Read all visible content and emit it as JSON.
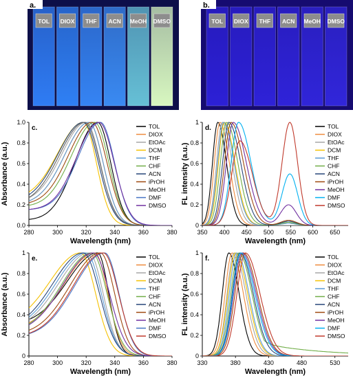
{
  "photos": [
    {
      "panel": "a.",
      "labels": [
        "TOL",
        "DIOX",
        "THF",
        "ACN",
        "MeOH",
        "DMSO"
      ],
      "vial_colors": [
        "#2f7cf4",
        "#2f80f5",
        "#3584f4",
        "#3a8af2",
        "#66c0d6",
        "#d8f7c0"
      ],
      "background": "#0d0f49"
    },
    {
      "panel": "b.",
      "labels": [
        "TOL",
        "DIOX",
        "THF",
        "ACN",
        "MeOH",
        "DMSO"
      ],
      "vial_colors": [
        "#2c20d6",
        "#2d21d7",
        "#2e22d8",
        "#2f23d9",
        "#3025d9",
        "#3126da"
      ],
      "background": "#160b70"
    }
  ],
  "chart_data": [
    {
      "panel": "c.",
      "type": "line",
      "xlabel": "Wavelength (nm)",
      "ylabel": "Absorbance (a.u.)",
      "xlim": [
        280,
        380
      ],
      "ylim": [
        0,
        1.0
      ],
      "xticks": [
        "280",
        "300",
        "320",
        "340",
        "360",
        "380"
      ],
      "yticks": [
        "0.0",
        "0.2",
        "0.4",
        "0.6",
        "0.8",
        "1.0"
      ],
      "legend": "top-right",
      "series": [
        {
          "name": "TOL",
          "color": "#000000",
          "peak": 328,
          "lw": 22,
          "rw": 13,
          "base": 0.05
        },
        {
          "name": "DIOX",
          "color": "#ee8a3c",
          "peak": 322,
          "lw": 24,
          "rw": 14,
          "base": 0.2
        },
        {
          "name": "EtOAc",
          "color": "#a5a5a5",
          "peak": 320,
          "lw": 24,
          "rw": 14,
          "base": 0.22
        },
        {
          "name": "DCM",
          "color": "#f5c100",
          "peak": 318,
          "lw": 25,
          "rw": 13,
          "base": 0.25
        },
        {
          "name": "THF",
          "color": "#5b9bd5",
          "peak": 322,
          "lw": 24,
          "rw": 14,
          "base": 0.2
        },
        {
          "name": "CHF",
          "color": "#70ad47",
          "peak": 326,
          "lw": 23,
          "rw": 14,
          "base": 0.18
        },
        {
          "name": "ACN",
          "color": "#264478",
          "peak": 318,
          "lw": 25,
          "rw": 15,
          "base": 0.22
        },
        {
          "name": "iPrOH",
          "color": "#9e480e",
          "peak": 324,
          "lw": 23,
          "rw": 15,
          "base": 0.2
        },
        {
          "name": "MeOH",
          "color": "#636363",
          "peak": 319,
          "lw": 25,
          "rw": 15,
          "base": 0.2
        },
        {
          "name": "DMF",
          "color": "#4472c4",
          "peak": 330,
          "lw": 22,
          "rw": 14,
          "base": 0.15
        },
        {
          "name": "DMSO",
          "color": "#7030a0",
          "peak": 329,
          "lw": 22,
          "rw": 15,
          "base": 0.15
        }
      ]
    },
    {
      "panel": "d.",
      "type": "line",
      "xlabel": "Wavelength (nm)",
      "ylabel": "FL intensity (a.u.)",
      "xlim": [
        350,
        680
      ],
      "ylim": [
        0,
        1.0
      ],
      "xticks": [
        "350",
        "400",
        "450",
        "500",
        "550",
        "600",
        "650"
      ],
      "yticks": [
        "0",
        "0.2",
        "0.4",
        "0.6",
        "0.8",
        "1"
      ],
      "legend": "top-right",
      "series": [
        {
          "name": "TOL",
          "color": "#000000",
          "peak": 385,
          "lw": 17,
          "rw": 28,
          "hump": 0,
          "hump_pos": 545
        },
        {
          "name": "DIOX",
          "color": "#ee8a3c",
          "peak": 390,
          "lw": 18,
          "rw": 30,
          "hump": 0,
          "hump_pos": 545
        },
        {
          "name": "EtOAc",
          "color": "#a5a5a5",
          "peak": 395,
          "lw": 18,
          "rw": 32,
          "hump": 0,
          "hump_pos": 545
        },
        {
          "name": "DCM",
          "color": "#f5c100",
          "peak": 400,
          "lw": 19,
          "rw": 34,
          "hump": 0.02,
          "hump_pos": 545
        },
        {
          "name": "THF",
          "color": "#5b9bd5",
          "peak": 398,
          "lw": 19,
          "rw": 34,
          "hump": 0.02,
          "hump_pos": 545
        },
        {
          "name": "CHF",
          "color": "#70ad47",
          "peak": 405,
          "lw": 20,
          "rw": 36,
          "hump": 0.03,
          "hump_pos": 545
        },
        {
          "name": "ACN",
          "color": "#264478",
          "peak": 410,
          "lw": 20,
          "rw": 38,
          "hump": 0.04,
          "hump_pos": 545
        },
        {
          "name": "iPrOH",
          "color": "#9e480e",
          "peak": 415,
          "lw": 21,
          "rw": 40,
          "hump": 0.05,
          "hump_pos": 545
        },
        {
          "name": "MeOH",
          "color": "#7030a0",
          "peak": 420,
          "lw": 22,
          "rw": 42,
          "hump": 0.2,
          "hump_pos": 545
        },
        {
          "name": "DMF",
          "color": "#00b0f0",
          "peak": 432,
          "lw": 24,
          "rw": 40,
          "hump": 0.5,
          "hump_pos": 548
        },
        {
          "name": "DMSO",
          "color": "#c0392b",
          "peak": 435,
          "lw": 26,
          "rw": 40,
          "peak_val": 0.82,
          "hump": 1.0,
          "hump_pos": 548
        }
      ]
    },
    {
      "panel": "e.",
      "type": "line",
      "xlabel": "Wavelength (nm)",
      "ylabel": "Absorbance (a.u.)",
      "xlim": [
        280,
        380
      ],
      "ylim": [
        0,
        1.0
      ],
      "xticks": [
        "280",
        "300",
        "320",
        "340",
        "360",
        "380"
      ],
      "yticks": [
        "0",
        "0.2",
        "0.4",
        "0.6",
        "0.8",
        "1"
      ],
      "legend": "top-right",
      "series": [
        {
          "name": "TOL",
          "color": "#000000",
          "peak": 328,
          "lw": 30,
          "rw": 11,
          "base": 0.3
        },
        {
          "name": "DIOX",
          "color": "#ee8a3c",
          "peak": 326,
          "lw": 30,
          "rw": 13,
          "base": 0.25
        },
        {
          "name": "EtOAc",
          "color": "#a5a5a5",
          "peak": 322,
          "lw": 30,
          "rw": 14,
          "base": 0.25
        },
        {
          "name": "DCM",
          "color": "#f5c100",
          "peak": 316,
          "lw": 30,
          "rw": 15,
          "base": 0.3
        },
        {
          "name": "THF",
          "color": "#5b9bd5",
          "peak": 320,
          "lw": 30,
          "rw": 15,
          "base": 0.25
        },
        {
          "name": "CHF",
          "color": "#70ad47",
          "peak": 324,
          "lw": 30,
          "rw": 15,
          "base": 0.22
        },
        {
          "name": "ACN",
          "color": "#264478",
          "peak": 318,
          "lw": 30,
          "rw": 16,
          "base": 0.25
        },
        {
          "name": "iPrOH",
          "color": "#9e480e",
          "peak": 330,
          "lw": 30,
          "rw": 14,
          "base": 0.2
        },
        {
          "name": "MeOH",
          "color": "#7030a0",
          "peak": 325,
          "lw": 30,
          "rw": 16,
          "base": 0.22
        },
        {
          "name": "DMF",
          "color": "#4472c4",
          "peak": 333,
          "lw": 30,
          "rw": 14,
          "base": 0.18
        },
        {
          "name": "DMSO",
          "color": "#c0392b",
          "peak": 332,
          "lw": 30,
          "rw": 15,
          "base": 0.18
        }
      ]
    },
    {
      "panel": "f.",
      "type": "line",
      "xlabel": "Wavelength (nm)",
      "ylabel": "FL intensity (a.u.)",
      "xlim": [
        330,
        550
      ],
      "ylim": [
        0,
        1.0
      ],
      "xticks": [
        "330",
        "380",
        "430",
        "480",
        "530"
      ],
      "yticks": [
        "0",
        "0.2",
        "0.4",
        "0.6",
        "0.8",
        "1"
      ],
      "legend": "top-right",
      "series": [
        {
          "name": "TOL",
          "color": "#000000",
          "peak": 370,
          "lw": 14,
          "rw": 22,
          "tail": 0
        },
        {
          "name": "DIOX",
          "color": "#ee8a3c",
          "peak": 375,
          "lw": 15,
          "rw": 24,
          "tail": 0
        },
        {
          "name": "EtOAc",
          "color": "#a5a5a5",
          "peak": 378,
          "lw": 15,
          "rw": 25,
          "tail": 0
        },
        {
          "name": "DCM",
          "color": "#f5c100",
          "peak": 380,
          "lw": 16,
          "rw": 26,
          "tail": 0
        },
        {
          "name": "THF",
          "color": "#5b9bd5",
          "peak": 382,
          "lw": 16,
          "rw": 26,
          "tail": 0
        },
        {
          "name": "CHF",
          "color": "#70ad47",
          "peak": 385,
          "lw": 17,
          "rw": 28,
          "tail": 0.18
        },
        {
          "name": "ACN",
          "color": "#264478",
          "peak": 387,
          "lw": 17,
          "rw": 28,
          "tail": 0
        },
        {
          "name": "iPrOH",
          "color": "#9e480e",
          "peak": 392,
          "lw": 18,
          "rw": 30,
          "tail": 0
        },
        {
          "name": "MeOH",
          "color": "#7030a0",
          "peak": 390,
          "lw": 18,
          "rw": 30,
          "tail": 0
        },
        {
          "name": "DMF",
          "color": "#00b0f0",
          "peak": 388,
          "lw": 17,
          "rw": 30,
          "tail": 0
        },
        {
          "name": "DMSO",
          "color": "#c0392b",
          "peak": 395,
          "lw": 18,
          "rw": 31,
          "tail": 0
        }
      ]
    }
  ]
}
